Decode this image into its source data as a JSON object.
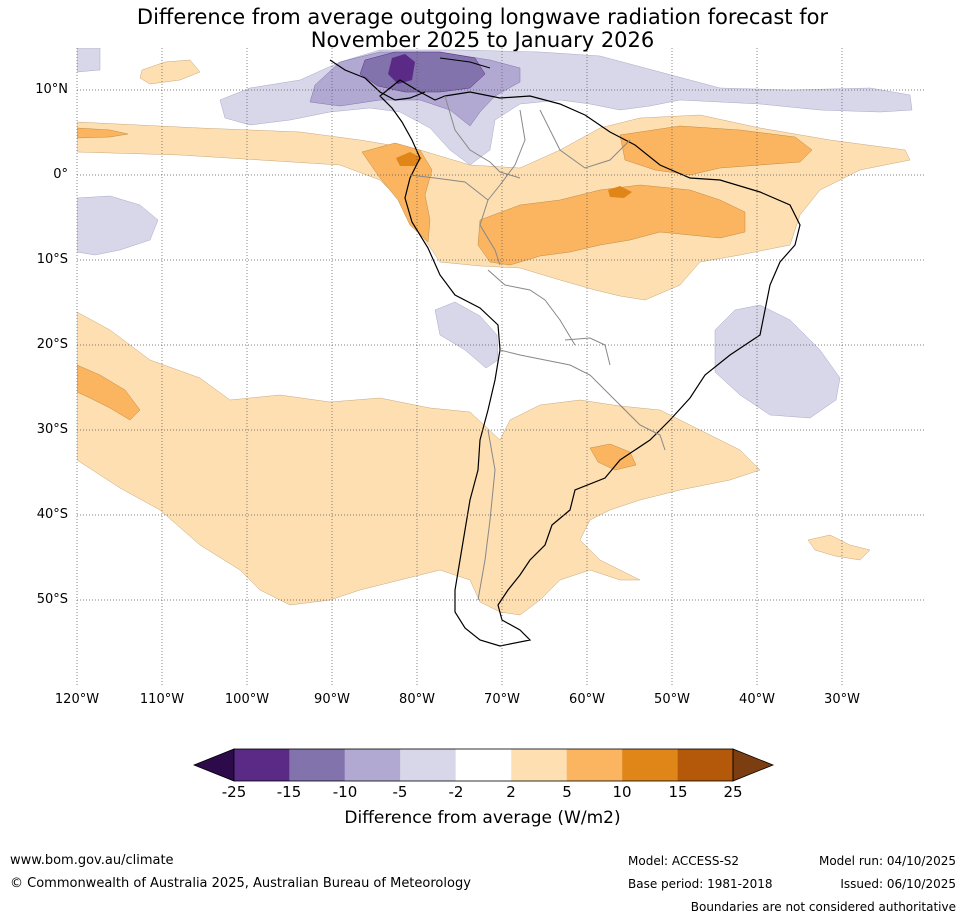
{
  "title_line1": "Difference from average outgoing longwave radiation forecast for",
  "title_line2": "November 2025 to January 2026",
  "lat_labels": [
    "10°N",
    "0°",
    "10°S",
    "20°S",
    "30°S",
    "40°S",
    "50°S"
  ],
  "lon_labels": [
    "120°W",
    "110°W",
    "100°W",
    "90°W",
    "80°W",
    "70°W",
    "60°W",
    "50°W",
    "40°W",
    "30°W"
  ],
  "colorbar": {
    "ticks": [
      "-25",
      "-15",
      "-10",
      "-5",
      "-2",
      "2",
      "5",
      "10",
      "15",
      "25"
    ],
    "colors": [
      "#2d0a4a",
      "#5b2a87",
      "#8273ad",
      "#b1a9d2",
      "#d7d7e9",
      "#ffffff",
      "#fddfb2",
      "#fbb561",
      "#e08517",
      "#b45809",
      "#7c3d10"
    ],
    "label": "Difference from average (W/m2)"
  },
  "footer": {
    "website": "www.bom.gov.au/climate",
    "copyright": "© Commonwealth of Australia 2025, Australian Bureau of Meteorology",
    "model": "Model: ACCESS-S2",
    "base_period": "Base period: 1981-2018",
    "model_run": "Model run: 04/10/2025",
    "issued": "Issued: 06/10/2025",
    "disclaimer": "Boundaries are not considered authoritative"
  }
}
